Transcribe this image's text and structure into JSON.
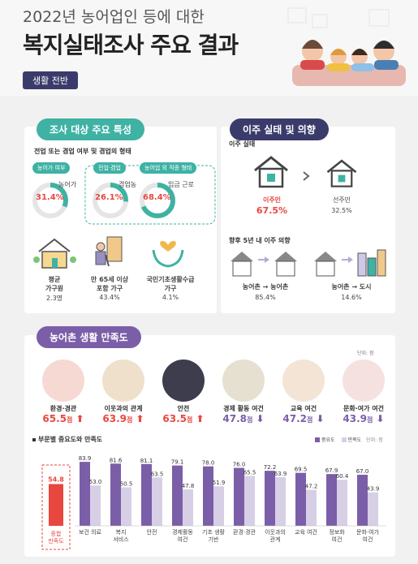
{
  "header": {
    "title_line1": "2022년 농어업인 등에 대한",
    "title_line2": "복지실태조사 주요 결과",
    "badge": "생활 전반"
  },
  "colors": {
    "teal": "#3fb2a4",
    "red": "#e8473f",
    "purple": "#7b5ea8",
    "light_purple": "#d7cfe6",
    "navy": "#3b3b6b"
  },
  "survey": {
    "pill": "조사 대상 주요 특성",
    "subtitle": "전업 또는 겸업 여부 및 겸업의 형태",
    "donuts": [
      {
        "tag": "농어가 여부",
        "label": "농어가",
        "value": 31.4,
        "text": "31.4%"
      },
      {
        "tag": "전업·겸업",
        "label": "겸업농",
        "value": 26.1,
        "text": "26.1%"
      },
      {
        "tag": "농어업 외 직종 형태",
        "label": "임금 근로",
        "value": 68.4,
        "text": "68.4%"
      }
    ],
    "stats": [
      {
        "label1": "평균",
        "label2": "가구원",
        "value": "2.3명",
        "icon": "house-icon"
      },
      {
        "label1": "만 65세 이상",
        "label2": "포함 가구",
        "value": "43.4%",
        "icon": "elderly-icon"
      },
      {
        "label1": "국민기초생활수급",
        "label2": "가구",
        "value": "4.1%",
        "icon": "care-hands-icon"
      }
    ]
  },
  "migration": {
    "pill": "이주 실태 및 의향",
    "sub1": "이주 실태",
    "migrant_label": "이주민",
    "migrant_value": "67.5%",
    "native_label": "선주민",
    "native_value": "32.5%",
    "sub2": "향후 5년 내 이주 의향",
    "rural_label": "농어촌 → 농어촌",
    "rural_value": "85.4%",
    "city_label": "농어촌 → 도시",
    "city_value": "14.6%"
  },
  "satisfaction": {
    "pill": "농어촌 생활 만족도",
    "unit": "단위: 점",
    "items": [
      {
        "label": "환경·경관",
        "value": "65.5",
        "unit": "점",
        "dir": "up",
        "color": "#e8473f"
      },
      {
        "label": "이웃과의 관계",
        "value": "63.9",
        "unit": "점",
        "dir": "up",
        "color": "#e8473f"
      },
      {
        "label": "안전",
        "value": "63.5",
        "unit": "점",
        "dir": "up",
        "color": "#e8473f"
      },
      {
        "label": "경제 활동 여건",
        "value": "47.8",
        "unit": "점",
        "dir": "down",
        "color": "#7b5ea8"
      },
      {
        "label": "교육 여건",
        "value": "47.2",
        "unit": "점",
        "dir": "down",
        "color": "#7b5ea8"
      },
      {
        "label": "문화·여가 여건",
        "value": "43.9",
        "unit": "점",
        "dir": "down",
        "color": "#7b5ea8"
      }
    ]
  },
  "chart_data": {
    "type": "bar",
    "title": "부문별 중요도와 만족도",
    "unit": "단위: 점",
    "overall": {
      "label_line1": "종합",
      "label_line2": "만족도",
      "value": 54.8
    },
    "categories": [
      [
        "보건 의료"
      ],
      [
        "복지",
        "서비스"
      ],
      [
        "안전"
      ],
      [
        "경제활동",
        "여건"
      ],
      [
        "기초 생활",
        "기반"
      ],
      [
        "환경·경관"
      ],
      [
        "이웃과의",
        "관계"
      ],
      [
        "교육 여건"
      ],
      [
        "정보화",
        "여건"
      ],
      [
        "문화·여가",
        "여건"
      ]
    ],
    "series": [
      {
        "name": "중요도",
        "color": "#7b5ea8",
        "values": [
          83.9,
          81.6,
          81.1,
          79.1,
          78.0,
          76.0,
          72.2,
          69.5,
          67.9,
          67.0
        ]
      },
      {
        "name": "만족도",
        "color": "#d7cfe6",
        "values": [
          53.0,
          50.5,
          63.5,
          47.8,
          51.9,
          65.5,
          63.9,
          47.2,
          60.4,
          43.9
        ]
      }
    ],
    "ylim": [
      0,
      100
    ]
  }
}
